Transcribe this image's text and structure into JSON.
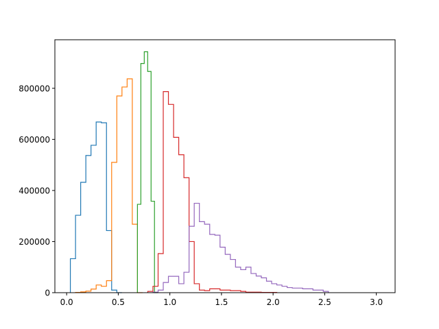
{
  "chart_data": {
    "type": "histogram",
    "style": "step",
    "xlim": [
      -0.114,
      3.182
    ],
    "ylim": [
      0,
      990000
    ],
    "x_ticks": [
      {
        "value": 0.0,
        "label": "0.0"
      },
      {
        "value": 0.5,
        "label": "0.5"
      },
      {
        "value": 1.0,
        "label": "1.0"
      },
      {
        "value": 1.5,
        "label": "1.5"
      },
      {
        "value": 2.0,
        "label": "2.0"
      },
      {
        "value": 2.5,
        "label": "2.5"
      },
      {
        "value": 3.0,
        "label": "3.0"
      }
    ],
    "y_ticks": [
      {
        "value": 0,
        "label": "0"
      },
      {
        "value": 200000,
        "label": "200000"
      },
      {
        "value": 400000,
        "label": "400000"
      },
      {
        "value": 600000,
        "label": "600000"
      },
      {
        "value": 800000,
        "label": "800000"
      }
    ],
    "series": [
      {
        "color": "#1f77b4",
        "bin_start": 0.036,
        "bin_width": 0.05,
        "counts": [
          133000,
          303000,
          432000,
          537000,
          577000,
          668000,
          665000,
          243000,
          10000,
          0
        ]
      },
      {
        "color": "#ff7f0e",
        "bin_start": 0.086,
        "bin_width": 0.05,
        "counts": [
          1000,
          3000,
          6000,
          14000,
          30000,
          25000,
          47000,
          510000,
          770000,
          805000,
          837000,
          268000,
          0
        ]
      },
      {
        "color": "#2ca02c",
        "bin_start": 0.686,
        "bin_width": 0.033,
        "counts": [
          346000,
          897000,
          943000,
          866000,
          358000,
          0
        ]
      },
      {
        "color": "#d62728",
        "bin_start": 0.786,
        "bin_width": 0.05,
        "counts": [
          5000,
          25000,
          153000,
          787000,
          737000,
          608000,
          540000,
          450000,
          200000,
          35000,
          10000,
          8000,
          15000,
          15000,
          10000,
          10000,
          8000,
          8000,
          5000,
          2000,
          2000,
          2000,
          1000,
          1000,
          1000
        ]
      },
      {
        "color": "#9467bd",
        "bin_start": 0.836,
        "bin_width": 0.05,
        "counts": [
          2000,
          10000,
          40000,
          64000,
          64000,
          35000,
          80000,
          260000,
          350000,
          278000,
          268000,
          228000,
          225000,
          178000,
          150000,
          130000,
          100000,
          90000,
          100000,
          75000,
          65000,
          58000,
          45000,
          35000,
          30000,
          25000,
          20000,
          18000,
          18000,
          15000,
          15000,
          10000,
          10000,
          5000
        ]
      }
    ]
  }
}
